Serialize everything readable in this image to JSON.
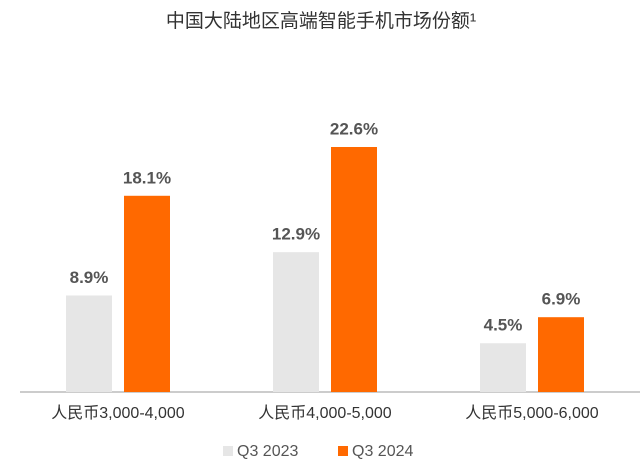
{
  "chart_data": {
    "type": "bar",
    "title": "中国大陆地区高端智能手机市场份额¹",
    "categories": [
      "人民币3,000-4,000",
      "人民币4,000-5,000",
      "人民币5,000-6,000"
    ],
    "series": [
      {
        "name": "Q3 2023",
        "color": "#e6e6e6",
        "values": [
          8.9,
          12.9,
          4.5
        ],
        "value_labels": [
          "8.9%",
          "12.9%",
          "4.5%"
        ]
      },
      {
        "name": "Q3 2024",
        "color": "#ff6900",
        "values": [
          18.1,
          22.6,
          6.9
        ],
        "value_labels": [
          "18.1%",
          "22.6%",
          "6.9%"
        ]
      }
    ],
    "legend": "bottom"
  }
}
